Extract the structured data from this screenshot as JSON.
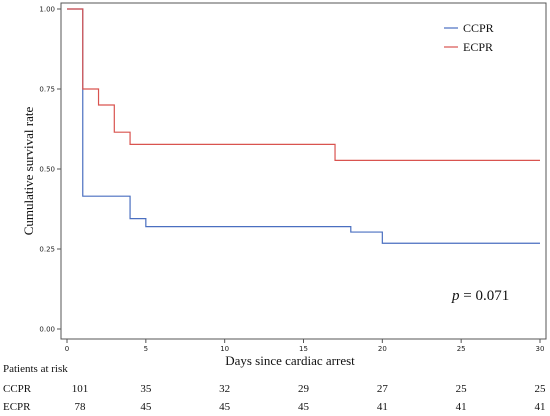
{
  "chart_data": {
    "type": "line",
    "step": true,
    "xlabel": "Days since cardiac arrest",
    "ylabel": "Cumulative survival rate",
    "xlim": [
      0,
      30
    ],
    "ylim": [
      0,
      1
    ],
    "x_ticks": [
      0,
      5,
      10,
      15,
      20,
      25,
      30
    ],
    "y_ticks": [
      "0.00",
      "0.25",
      "0.50",
      "0.75",
      "1.00"
    ],
    "legend_position": "top-right",
    "series": [
      {
        "name": "CCPR",
        "color": "#4a6fc0",
        "points": [
          [
            0,
            1.0
          ],
          [
            1,
            0.415
          ],
          [
            4,
            0.415
          ],
          [
            4,
            0.345
          ],
          [
            5,
            0.345
          ],
          [
            5,
            0.32
          ],
          [
            18,
            0.32
          ],
          [
            18,
            0.303
          ],
          [
            20,
            0.303
          ],
          [
            20,
            0.268
          ],
          [
            30,
            0.268
          ]
        ]
      },
      {
        "name": "ECPR",
        "color": "#d9534f",
        "points": [
          [
            0,
            1.0
          ],
          [
            1,
            1.0
          ],
          [
            1,
            0.75
          ],
          [
            2,
            0.75
          ],
          [
            2,
            0.7
          ],
          [
            3,
            0.7
          ],
          [
            3,
            0.615
          ],
          [
            4,
            0.615
          ],
          [
            4,
            0.577
          ],
          [
            17,
            0.577
          ],
          [
            17,
            0.527
          ],
          [
            30,
            0.527
          ]
        ]
      }
    ],
    "annotation": {
      "label": "p",
      "text": " = 0.071"
    },
    "risk_table": {
      "title": "Patients at risk",
      "times": [
        0,
        5,
        10,
        15,
        20,
        25,
        30
      ],
      "rows": [
        {
          "label": "CCPR",
          "values": [
            "101",
            "35",
            "32",
            "29",
            "27",
            "25",
            "25"
          ]
        },
        {
          "label": "ECPR",
          "values": [
            "78",
            "45",
            "45",
            "45",
            "41",
            "41",
            "41"
          ]
        }
      ]
    }
  }
}
